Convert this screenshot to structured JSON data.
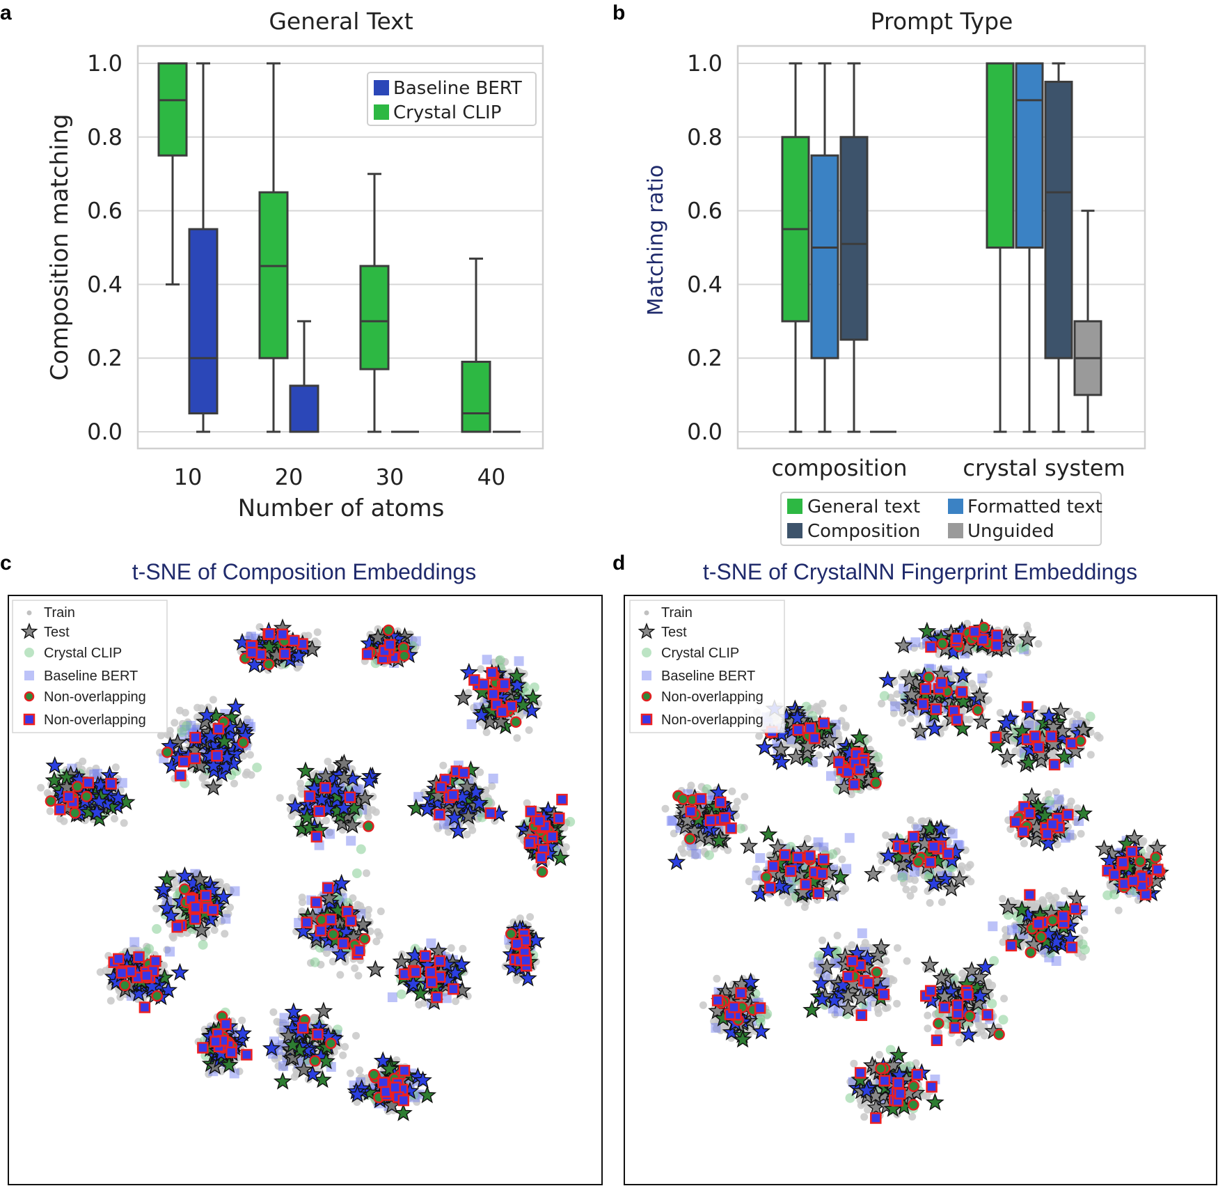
{
  "panels": {
    "a": "a",
    "b": "b",
    "c": "c",
    "d": "d"
  },
  "colors": {
    "green": "#2db843",
    "royal": "#2b47b8",
    "steel": "#3b82c4",
    "slate": "#3d536b",
    "gray": "#9a9a9a"
  },
  "chart_data": [
    {
      "id": "a",
      "type": "box",
      "title": "General Text",
      "xlabel": "Number of atoms",
      "ylabel": "Composition matching",
      "ylim": [
        0,
        1.0
      ],
      "yticks": [
        "0.0",
        "0.2",
        "0.4",
        "0.6",
        "0.8",
        "1.0"
      ],
      "categories": [
        "10",
        "20",
        "30",
        "40"
      ],
      "legend": [
        "Baseline BERT",
        "Crystal CLIP"
      ],
      "series": [
        {
          "name": "Crystal CLIP",
          "color": "#2db843",
          "boxes": [
            {
              "min": 0.4,
              "q1": 0.75,
              "median": 0.9,
              "q3": 1.0,
              "max": 1.0
            },
            {
              "min": 0.0,
              "q1": 0.2,
              "median": 0.45,
              "q3": 0.65,
              "max": 1.0
            },
            {
              "min": 0.0,
              "q1": 0.17,
              "median": 0.3,
              "q3": 0.45,
              "max": 0.7
            },
            {
              "min": 0.0,
              "q1": 0.0,
              "median": 0.05,
              "q3": 0.19,
              "max": 0.47
            }
          ]
        },
        {
          "name": "Baseline BERT",
          "color": "#2b47b8",
          "boxes": [
            {
              "min": 0.0,
              "q1": 0.05,
              "median": 0.2,
              "q3": 0.55,
              "max": 1.0
            },
            {
              "min": 0.0,
              "q1": 0.0,
              "median": 0.0,
              "q3": 0.125,
              "max": 0.3
            },
            {
              "min": 0.0,
              "q1": 0.0,
              "median": 0.0,
              "q3": 0.0,
              "max": 0.0
            },
            {
              "min": 0.0,
              "q1": 0.0,
              "median": 0.0,
              "q3": 0.0,
              "max": 0.0
            }
          ]
        }
      ]
    },
    {
      "id": "b",
      "type": "box",
      "title": "Prompt Type",
      "ylabel": "Matching ratio",
      "ylim": [
        0,
        1.0
      ],
      "yticks": [
        "0.0",
        "0.2",
        "0.4",
        "0.6",
        "0.8",
        "1.0"
      ],
      "categories": [
        "composition",
        "crystal system"
      ],
      "legend": [
        "General text",
        "Formatted text",
        "Composition",
        "Unguided"
      ],
      "series": [
        {
          "name": "General text",
          "color": "#2db843",
          "boxes": [
            {
              "min": 0.0,
              "q1": 0.3,
              "median": 0.55,
              "q3": 0.8,
              "max": 1.0
            },
            {
              "min": 0.0,
              "q1": 0.5,
              "median": 1.0,
              "q3": 1.0,
              "max": 1.0
            }
          ]
        },
        {
          "name": "Formatted text",
          "color": "#3b82c4",
          "boxes": [
            {
              "min": 0.0,
              "q1": 0.2,
              "median": 0.5,
              "q3": 0.75,
              "max": 1.0
            },
            {
              "min": 0.0,
              "q1": 0.5,
              "median": 0.9,
              "q3": 1.0,
              "max": 1.0
            }
          ]
        },
        {
          "name": "Composition",
          "color": "#3d536b",
          "boxes": [
            {
              "min": 0.0,
              "q1": 0.25,
              "median": 0.51,
              "q3": 0.8,
              "max": 1.0
            },
            {
              "min": 0.0,
              "q1": 0.2,
              "median": 0.65,
              "q3": 0.95,
              "max": 1.0
            }
          ]
        },
        {
          "name": "Unguided",
          "color": "#9a9a9a",
          "boxes": [
            {
              "min": 0.0,
              "q1": 0.0,
              "median": 0.0,
              "q3": 0.0,
              "max": 0.0
            },
            {
              "min": 0.0,
              "q1": 0.1,
              "median": 0.2,
              "q3": 0.3,
              "max": 0.6
            }
          ]
        }
      ]
    },
    {
      "id": "c",
      "type": "scatter",
      "title": "t-SNE of Composition Embeddings",
      "legend": [
        "Train",
        "Test",
        "Crystal CLIP",
        "Baseline BERT",
        "Non-overlapping",
        "Non-overlapping"
      ]
    },
    {
      "id": "d",
      "type": "scatter",
      "title": "t-SNE of CrystalNN Fingerprint Embeddings",
      "legend": [
        "Train",
        "Test",
        "Crystal CLIP",
        "Baseline BERT",
        "Non-overlapping",
        "Non-overlapping"
      ]
    }
  ]
}
